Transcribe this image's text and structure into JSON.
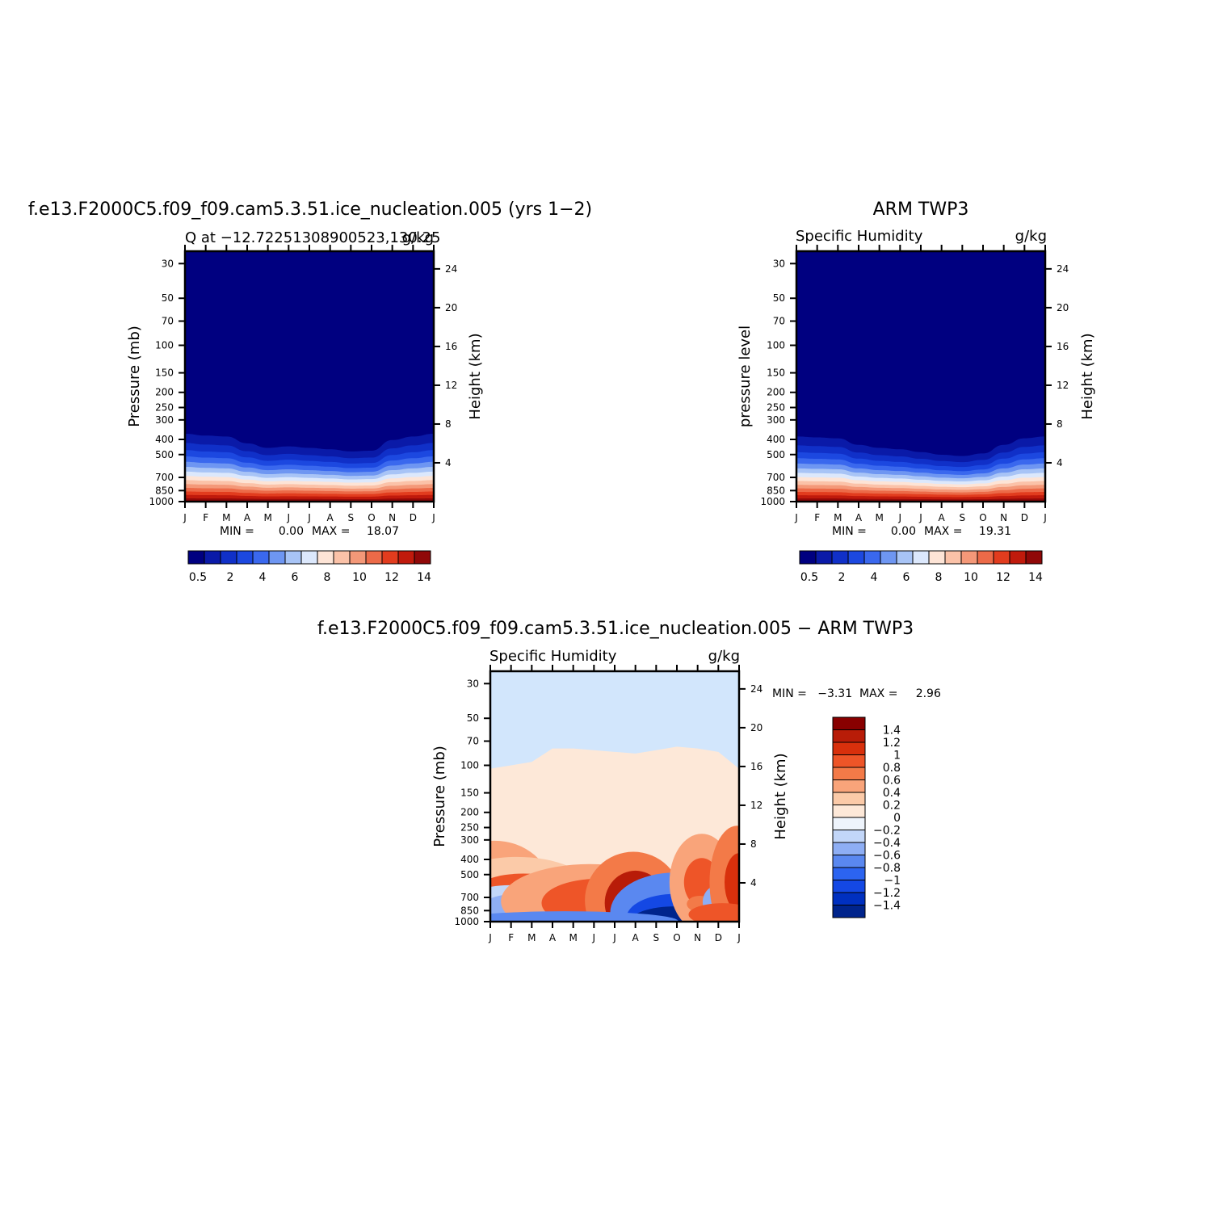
{
  "colors": {
    "seq": [
      "#000080",
      "#0a1aa8",
      "#1030c8",
      "#1c48e0",
      "#3a68ee",
      "#6e96f2",
      "#a8c4f6",
      "#dce8fc",
      "#fde4d6",
      "#fbc2a8",
      "#f49878",
      "#ec6a48",
      "#e23c1e",
      "#c01a0c",
      "#900808"
    ],
    "diff": [
      "#00248c",
      "#0030c0",
      "#1448e4",
      "#2c64f0",
      "#5a88f0",
      "#8eaef4",
      "#c2d6f8",
      "#eef4fc",
      "#fde8d8",
      "#fbcaa8",
      "#f9a47a",
      "#f37a48",
      "#ee5528",
      "#d8300c",
      "#b81c08",
      "#880000"
    ]
  },
  "panels": {
    "model": {
      "title": "f.e13.F2000C5.f09_f09.cam5.3.51.ice_nucleation.005 (yrs 1−2)",
      "left_string": "Q at −12.72251308900523,130.25",
      "right_string": "g/kg",
      "ylabel_left": "Pressure (mb)",
      "ylabel_right": "Height (km)",
      "min_label": "MIN =",
      "min_value": "0.00",
      "max_label": "MAX =",
      "max_value": "18.07"
    },
    "obs": {
      "title": "ARM TWP3",
      "left_string": "Specific Humidity",
      "right_string": "g/kg",
      "ylabel_left": "pressure level",
      "ylabel_right": "Height (km)",
      "min_label": "MIN =",
      "min_value": "0.00",
      "max_label": "MAX =",
      "max_value": "19.31"
    },
    "diff": {
      "title": "f.e13.F2000C5.f09_f09.cam5.3.51.ice_nucleation.005 − ARM TWP3",
      "left_string": "Specific Humidity",
      "right_string": "g/kg",
      "ylabel_left": "Pressure (mb)",
      "ylabel_right": "Height (km)",
      "minmax_text": "MIN =   −3.31  MAX =     2.96"
    }
  },
  "chart_data": [
    {
      "type": "heatmap",
      "title": "f.e13.F2000C5.f09_f09.cam5.3.51.ice_nucleation.005 (yrs 1−2)",
      "subtitle": "Q at −12.72251308900523,130.25",
      "units": "g/kg",
      "ylabel": "Pressure (mb)",
      "ylabel_right": "Height (km)",
      "x": [
        "J",
        "F",
        "M",
        "A",
        "M",
        "J",
        "J",
        "A",
        "S",
        "O",
        "N",
        "D",
        "J"
      ],
      "pressure_ticks": [
        "30",
        "50",
        "70",
        "100",
        "150",
        "200",
        "250",
        "300",
        "400",
        "500",
        "700",
        "850",
        "1000"
      ],
      "height_ticks": [
        "24",
        "20",
        "16",
        "12",
        "8",
        "4"
      ],
      "colorbar_labels": [
        "0.5",
        "2",
        "4",
        "6",
        "8",
        "10",
        "12",
        "14"
      ],
      "ylim": [
        1000,
        25
      ],
      "min": 0.0,
      "max": 18.07,
      "moist_top_mb": [
        275,
        285,
        290,
        330,
        360,
        350,
        360,
        370,
        385,
        380,
        310,
        290,
        275
      ]
    },
    {
      "type": "heatmap",
      "title": "ARM TWP3",
      "subtitle": "Specific Humidity",
      "units": "g/kg",
      "ylabel": "pressure level",
      "ylabel_right": "Height (km)",
      "x": [
        "J",
        "F",
        "M",
        "A",
        "M",
        "J",
        "J",
        "A",
        "S",
        "O",
        "N",
        "D",
        "J"
      ],
      "pressure_ticks": [
        "30",
        "50",
        "70",
        "100",
        "150",
        "200",
        "250",
        "300",
        "400",
        "500",
        "700",
        "850",
        "1000"
      ],
      "height_ticks": [
        "24",
        "20",
        "16",
        "12",
        "8",
        "4"
      ],
      "colorbar_labels": [
        "0.5",
        "2",
        "4",
        "6",
        "8",
        "10",
        "12",
        "14"
      ],
      "ylim": [
        1000,
        25
      ],
      "min": 0.0,
      "max": 19.31,
      "moist_top_mb": [
        290,
        295,
        300,
        340,
        360,
        370,
        390,
        410,
        420,
        400,
        340,
        300,
        290
      ]
    },
    {
      "type": "heatmap",
      "title": "f.e13.F2000C5.f09_f09.cam5.3.51.ice_nucleation.005 − ARM TWP3",
      "subtitle": "Specific Humidity",
      "units": "g/kg",
      "ylabel": "Pressure (mb)",
      "ylabel_right": "Height (km)",
      "x": [
        "J",
        "F",
        "M",
        "A",
        "M",
        "J",
        "J",
        "A",
        "S",
        "O",
        "N",
        "D",
        "J"
      ],
      "pressure_ticks": [
        "30",
        "50",
        "70",
        "100",
        "150",
        "200",
        "250",
        "300",
        "400",
        "500",
        "700",
        "850",
        "1000"
      ],
      "height_ticks": [
        "24",
        "20",
        "16",
        "12",
        "8",
        "4"
      ],
      "colorbar_labels": [
        "1.4",
        "1.2",
        "1",
        "0.8",
        "0.6",
        "0.4",
        "0.2",
        "0",
        "−0.2",
        "−0.4",
        "−0.6",
        "−0.8",
        "−1",
        "−1.2",
        "−1.4"
      ],
      "ylim": [
        1000,
        25
      ],
      "min": -3.31,
      "max": 2.96
    }
  ]
}
